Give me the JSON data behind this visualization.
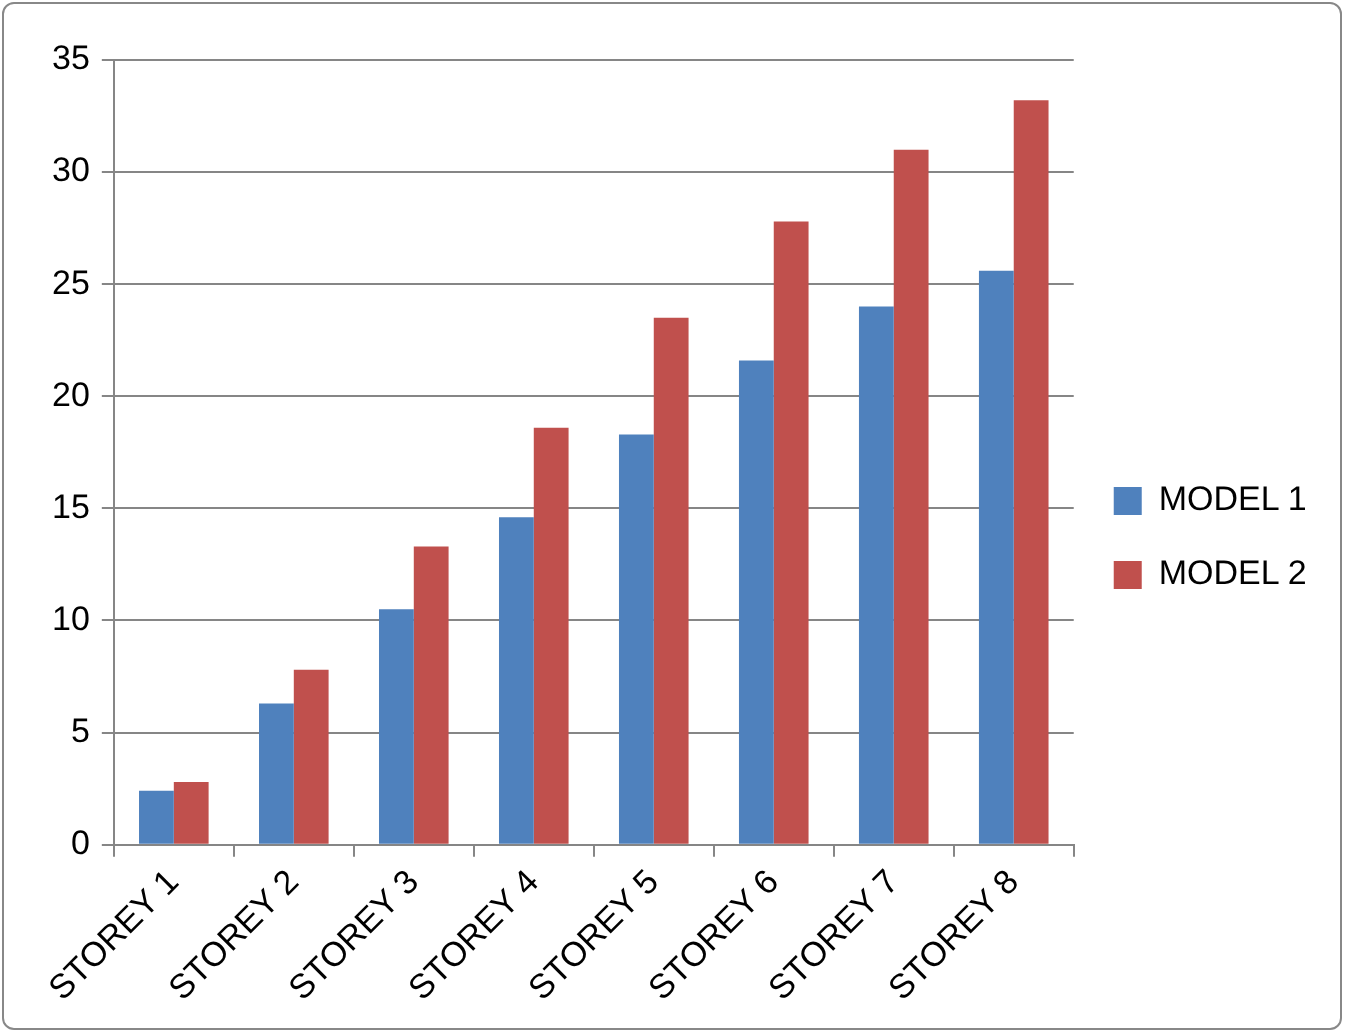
{
  "chart_data": {
    "type": "bar",
    "categories": [
      "STOREY 1",
      "STOREY 2",
      "STOREY 3",
      "STOREY 4",
      "STOREY 5",
      "STOREY 6",
      "STOREY 7",
      "STOREY 8"
    ],
    "series": [
      {
        "name": "MODEL 1",
        "color": "#4f81bd",
        "values": [
          2.4,
          6.3,
          10.5,
          14.6,
          18.3,
          21.6,
          24.0,
          25.6
        ]
      },
      {
        "name": "MODEL 2",
        "color": "#c0504d",
        "values": [
          2.8,
          7.8,
          13.3,
          18.6,
          23.5,
          27.8,
          31.0,
          33.2
        ]
      }
    ],
    "ylim": [
      0,
      35
    ],
    "yticks": [
      0,
      5,
      10,
      15,
      20,
      25,
      30,
      35
    ],
    "grid": "y",
    "legend": "right"
  }
}
